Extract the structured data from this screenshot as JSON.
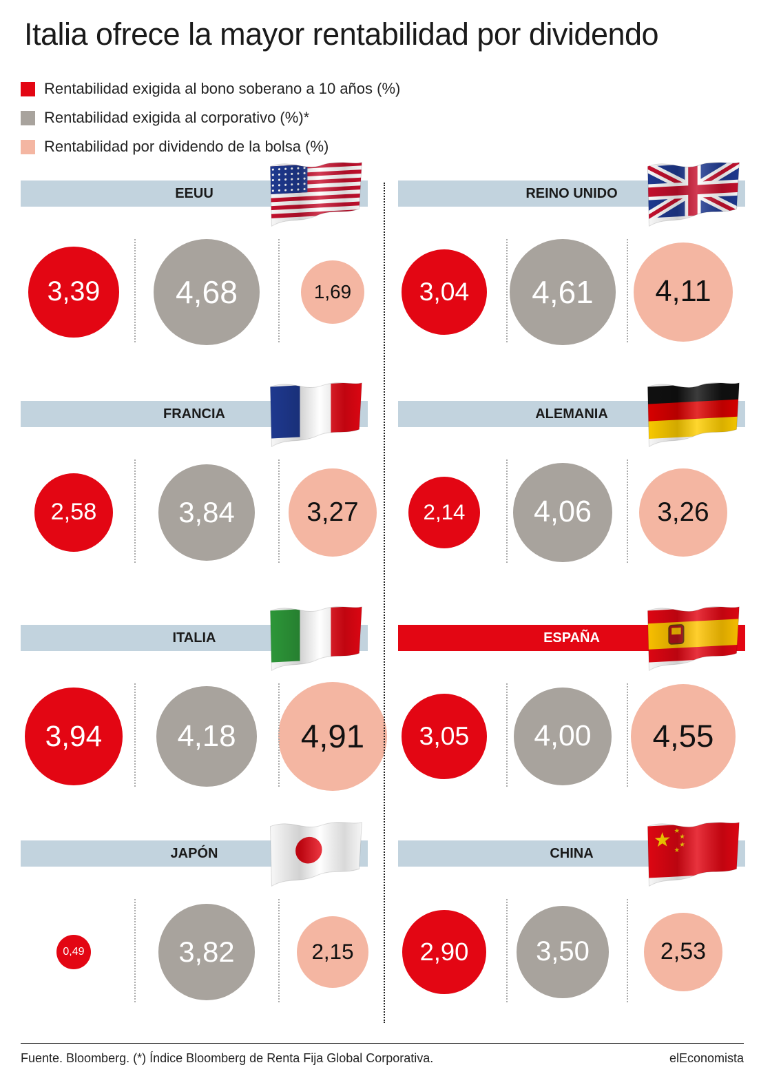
{
  "title": "Italia ofrece la mayor rentabilidad por dividendo",
  "legend": [
    {
      "label": "Rentabilidad exigida al bono soberano a 10 años (%)",
      "color": "#e30613"
    },
    {
      "label": "Rentabilidad exigida al corporativo (%)*",
      "color": "#a8a39d"
    },
    {
      "label": "Rentabilidad por dividendo de la bolsa (%)",
      "color": "#f4b6a2"
    }
  ],
  "colors": {
    "bono": "#e30613",
    "corporativo": "#a8a39d",
    "dividendo": "#f4b6a2",
    "bar": "#c2d3de",
    "bar_highlight": "#e30613"
  },
  "chart_data": {
    "type": "bubble",
    "series": [
      {
        "name": "Rentabilidad exigida al bono soberano a 10 años (%)",
        "key": "bono"
      },
      {
        "name": "Rentabilidad exigida al corporativo (%)*",
        "key": "corporativo"
      },
      {
        "name": "Rentabilidad por dividendo de la bolsa (%)",
        "key": "dividendo"
      }
    ],
    "countries": [
      {
        "name": "EEUU",
        "flag": "usa-flag",
        "highlight": false,
        "values": [
          {
            "value": 3.39,
            "label": "3,39"
          },
          {
            "value": 4.68,
            "label": "4,68"
          },
          {
            "value": 1.69,
            "label": "1,69"
          }
        ]
      },
      {
        "name": "REINO UNIDO",
        "flag": "uk-flag",
        "highlight": false,
        "values": [
          {
            "value": 3.04,
            "label": "3,04"
          },
          {
            "value": 4.61,
            "label": "4,61"
          },
          {
            "value": 4.11,
            "label": "4,11"
          }
        ]
      },
      {
        "name": "FRANCIA",
        "flag": "france-flag",
        "highlight": false,
        "values": [
          {
            "value": 2.58,
            "label": "2,58"
          },
          {
            "value": 3.84,
            "label": "3,84"
          },
          {
            "value": 3.27,
            "label": "3,27"
          }
        ]
      },
      {
        "name": "ALEMANIA",
        "flag": "germany-flag",
        "highlight": false,
        "values": [
          {
            "value": 2.14,
            "label": "2,14"
          },
          {
            "value": 4.06,
            "label": "4,06"
          },
          {
            "value": 3.26,
            "label": "3,26"
          }
        ]
      },
      {
        "name": "ITALIA",
        "flag": "italy-flag",
        "highlight": false,
        "values": [
          {
            "value": 3.94,
            "label": "3,94"
          },
          {
            "value": 4.18,
            "label": "4,18"
          },
          {
            "value": 4.91,
            "label": "4,91"
          }
        ]
      },
      {
        "name": "ESPAÑA",
        "flag": "spain-flag",
        "highlight": true,
        "values": [
          {
            "value": 3.05,
            "label": "3,05"
          },
          {
            "value": 4.0,
            "label": "4,00"
          },
          {
            "value": 4.55,
            "label": "4,55"
          }
        ]
      },
      {
        "name": "JAPÓN",
        "flag": "japan-flag",
        "highlight": false,
        "values": [
          {
            "value": 0.49,
            "label": "0,49"
          },
          {
            "value": 3.82,
            "label": "3,82"
          },
          {
            "value": 2.15,
            "label": "2,15"
          }
        ]
      },
      {
        "name": "CHINA",
        "flag": "china-flag",
        "highlight": false,
        "values": [
          {
            "value": 2.9,
            "label": "2,90"
          },
          {
            "value": 3.5,
            "label": "3,50"
          },
          {
            "value": 2.53,
            "label": "2,53"
          }
        ]
      }
    ]
  },
  "footer": {
    "source": "Fuente. Bloomberg. (*) Índice Bloomberg de Renta Fija Global Corporativa.",
    "brand": "elEconomista"
  }
}
